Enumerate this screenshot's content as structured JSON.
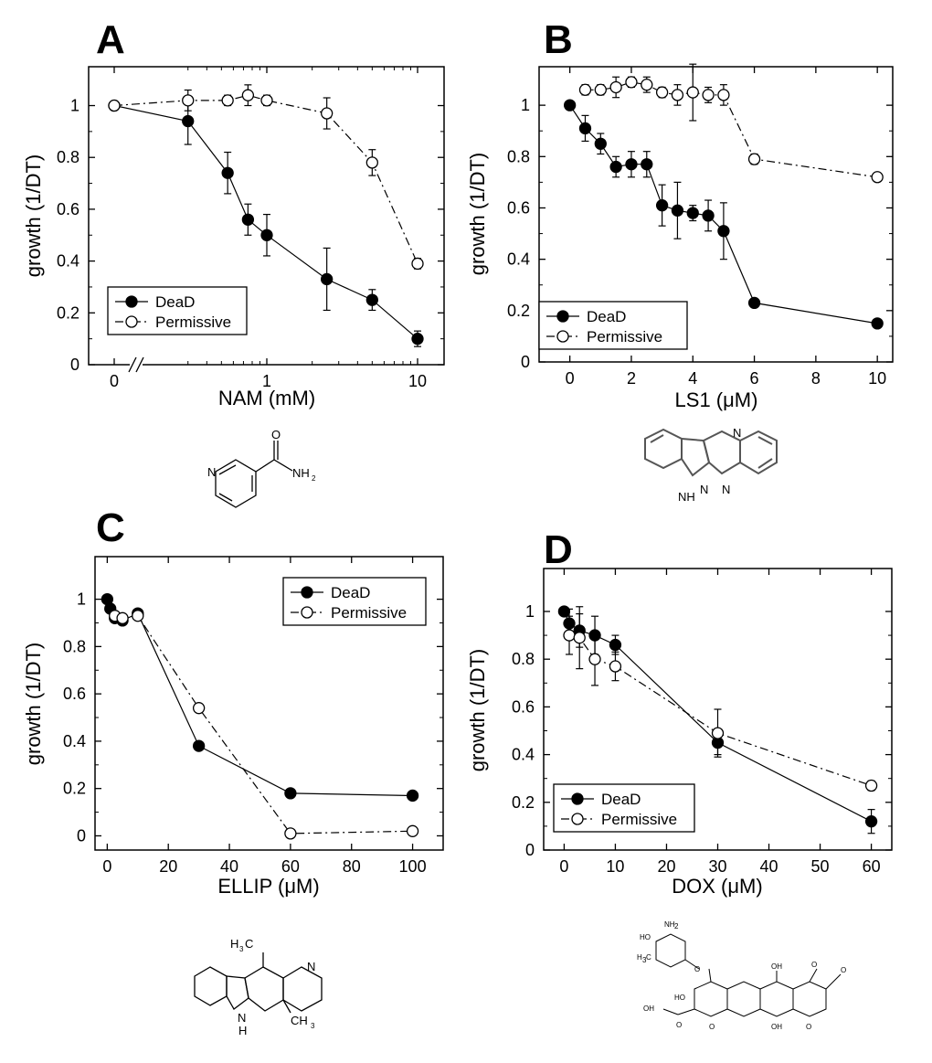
{
  "chart_data": [
    {
      "panel": "A",
      "type": "line",
      "xscale": "log-with-break",
      "xlabel": "NAM (mM)",
      "ylabel": "growth (1/DT)",
      "xticks": [
        "0",
        "1",
        "10"
      ],
      "yticks": [
        "0",
        "0.2",
        "0.4",
        "0.6",
        "0.8",
        "1"
      ],
      "ylim": [
        0,
        1.15
      ],
      "legend_position": "bottom-left",
      "series": [
        {
          "name": "DeaD",
          "marker": "filled",
          "line": "solid",
          "x": [
            0,
            0.3,
            0.55,
            0.75,
            1.0,
            2.5,
            5.0,
            10.0
          ],
          "y": [
            1.0,
            0.94,
            0.74,
            0.56,
            0.5,
            0.33,
            0.25,
            0.1
          ],
          "err": [
            0,
            0.09,
            0.08,
            0.06,
            0.08,
            0.12,
            0.04,
            0.03
          ]
        },
        {
          "name": "Permissive",
          "marker": "open",
          "line": "dashdot",
          "x": [
            0,
            0.3,
            0.55,
            0.75,
            1.0,
            2.5,
            5.0,
            10.0
          ],
          "y": [
            1.0,
            1.02,
            1.02,
            1.04,
            1.02,
            0.97,
            0.78,
            0.39
          ],
          "err": [
            0,
            0.04,
            0.02,
            0.04,
            0.02,
            0.06,
            0.05,
            0.02
          ]
        }
      ],
      "structure_labels": [
        "N",
        "O",
        "NH",
        "2"
      ]
    },
    {
      "panel": "B",
      "type": "line",
      "xlabel": "LS1 (μM)",
      "ylabel": "growth (1/DT)",
      "xticks": [
        "0",
        "2",
        "4",
        "6",
        "8",
        "10"
      ],
      "yticks": [
        "0",
        "0.2",
        "0.4",
        "0.6",
        "0.8",
        "1"
      ],
      "xlim": [
        -1,
        10.5
      ],
      "ylim": [
        0,
        1.15
      ],
      "legend_position": "bottom-left",
      "series": [
        {
          "name": "DeaD",
          "marker": "filled",
          "line": "solid",
          "x": [
            0,
            0.5,
            1.0,
            1.5,
            2.0,
            2.5,
            3.0,
            3.5,
            4.0,
            4.5,
            5.0,
            6.0,
            10.0
          ],
          "y": [
            1.0,
            0.91,
            0.85,
            0.76,
            0.77,
            0.77,
            0.61,
            0.59,
            0.58,
            0.57,
            0.51,
            0.23,
            0.15
          ],
          "err": [
            0,
            0.05,
            0.04,
            0.04,
            0.05,
            0.05,
            0.08,
            0.11,
            0.03,
            0.06,
            0.11,
            0.01,
            0.01
          ]
        },
        {
          "name": "Permissive",
          "marker": "open",
          "line": "dashdot",
          "x": [
            0.5,
            1.0,
            1.5,
            2.0,
            2.5,
            3.0,
            3.5,
            4.0,
            4.5,
            5.0,
            6.0,
            10.0
          ],
          "y": [
            1.06,
            1.06,
            1.07,
            1.09,
            1.08,
            1.05,
            1.04,
            1.05,
            1.04,
            1.04,
            0.79,
            0.72
          ],
          "err": [
            0.02,
            0.02,
            0.04,
            0.02,
            0.03,
            0.02,
            0.04,
            0.11,
            0.03,
            0.04,
            0.02,
            0.01
          ]
        }
      ],
      "structure_labels": [
        "N",
        "N",
        "NH",
        "N"
      ]
    },
    {
      "panel": "C",
      "type": "line",
      "xlabel": "ELLIP (μM)",
      "ylabel": "growth (1/DT)",
      "xticks": [
        "0",
        "20",
        "40",
        "60",
        "80",
        "100"
      ],
      "yticks": [
        "0",
        "0.2",
        "0.4",
        "0.6",
        "0.8",
        "1"
      ],
      "xlim": [
        -4,
        110
      ],
      "ylim": [
        -0.06,
        1.18
      ],
      "legend_position": "top-right",
      "series": [
        {
          "name": "DeaD",
          "marker": "filled",
          "line": "solid",
          "x": [
            0,
            1,
            2.5,
            5,
            10,
            30,
            60,
            100
          ],
          "y": [
            1.0,
            0.96,
            0.92,
            0.91,
            0.94,
            0.38,
            0.18,
            0.17
          ],
          "err": [
            0,
            0,
            0,
            0,
            0,
            0,
            0,
            0
          ]
        },
        {
          "name": "Permissive",
          "marker": "open",
          "line": "dashdot",
          "x": [
            2.5,
            5,
            10,
            30,
            60,
            100
          ],
          "y": [
            0.93,
            0.92,
            0.93,
            0.54,
            0.01,
            0.02
          ],
          "err": [
            0,
            0,
            0,
            0,
            0,
            0
          ]
        }
      ],
      "structure_labels": [
        "H",
        "3",
        "C",
        "CH",
        "3",
        "N",
        "N",
        "H"
      ]
    },
    {
      "panel": "D",
      "type": "line",
      "xlabel": "DOX (μM)",
      "ylabel": "growth (1/DT)",
      "xticks": [
        "0",
        "10",
        "20",
        "30",
        "40",
        "50",
        "60"
      ],
      "yticks": [
        "0",
        "0.2",
        "0.4",
        "0.6",
        "0.8",
        "1"
      ],
      "xlim": [
        -4,
        64
      ],
      "ylim": [
        0,
        1.18
      ],
      "legend_position": "bottom-left",
      "series": [
        {
          "name": "DeaD",
          "marker": "filled",
          "line": "solid",
          "x": [
            0,
            1,
            3,
            6,
            10,
            30,
            60
          ],
          "y": [
            1.0,
            0.95,
            0.92,
            0.9,
            0.86,
            0.45,
            0.12
          ],
          "err": [
            0,
            0.06,
            0.07,
            0.08,
            0.04,
            0.05,
            0.05
          ]
        },
        {
          "name": "Permissive",
          "marker": "open",
          "line": "dashdot",
          "x": [
            1,
            3,
            6,
            10,
            30,
            60
          ],
          "y": [
            0.9,
            0.89,
            0.8,
            0.77,
            0.49,
            0.27
          ],
          "err": [
            0.08,
            0.13,
            0.11,
            0.06,
            0.1,
            0.02
          ]
        }
      ],
      "structure_labels": [
        "NH",
        "2",
        "HO",
        "H",
        "3",
        "C",
        "O",
        "OH",
        "O",
        "O",
        "OH",
        "O",
        "HO",
        "O",
        "OH",
        "O"
      ]
    }
  ]
}
